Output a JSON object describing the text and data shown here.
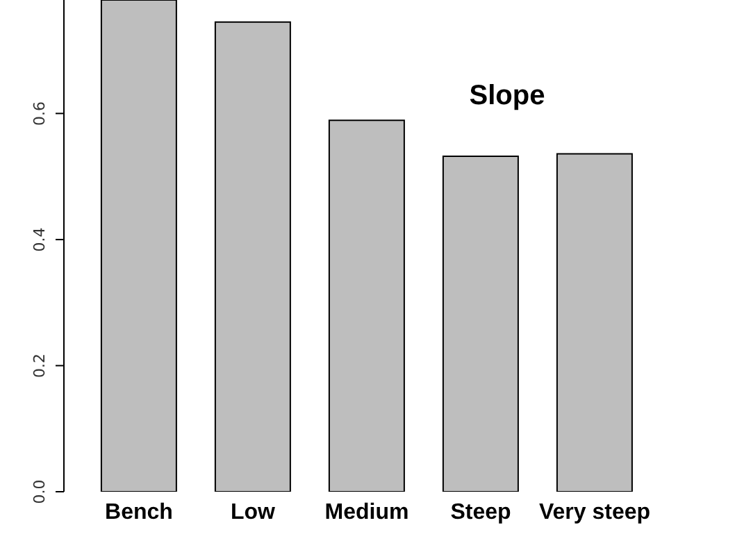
{
  "chart_data": {
    "type": "bar",
    "title": "Slope",
    "categories": [
      "Bench",
      "Low",
      "Medium",
      "Steep",
      "Very steep"
    ],
    "values": [
      0.78,
      0.745,
      0.589,
      0.532,
      0.536
    ],
    "color": "#bebebe",
    "ylim": [
      0,
      0.78
    ],
    "yticks": [
      {
        "value": 0,
        "label": "0.0"
      },
      {
        "value": 0.2,
        "label": "0.2"
      },
      {
        "value": 0.4,
        "label": "0.4"
      },
      {
        "value": 0.6,
        "label": "0.6"
      }
    ],
    "grid": false,
    "legend": false
  }
}
